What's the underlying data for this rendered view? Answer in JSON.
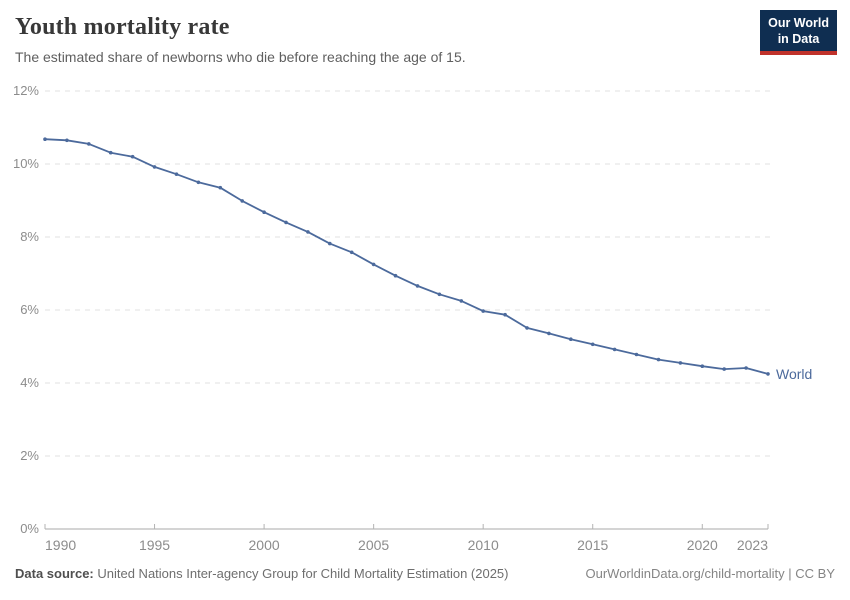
{
  "header": {
    "title": "Youth mortality rate",
    "subtitle": "The estimated share of newborns who die before reaching the age of 15."
  },
  "logo": {
    "line1": "Our World",
    "line2": "in Data",
    "bg_color": "#0f2e51",
    "accent_color": "#c0322b"
  },
  "footer": {
    "source_label": "Data source:",
    "source_text": " United Nations Inter-agency Group for Child Mortality Estimation (2025)",
    "attribution": "OurWorldinData.org/child-mortality | CC BY"
  },
  "chart_data": {
    "type": "line",
    "title": "Youth mortality rate",
    "subtitle": "The estimated share of newborns who die before reaching the age of 15.",
    "xlabel": "",
    "ylabel": "",
    "xlim": [
      1990,
      2023
    ],
    "ylim": [
      0,
      12
    ],
    "grid": "horizontal-dashed",
    "legend_position": "end-of-line",
    "line_color": "#4C6A9C",
    "xticks": [
      1990,
      1995,
      2000,
      2005,
      2010,
      2015,
      2020,
      2023
    ],
    "yticks": [
      0,
      2,
      4,
      6,
      8,
      10,
      12
    ],
    "ytick_labels": [
      "0%",
      "2%",
      "4%",
      "6%",
      "8%",
      "10%",
      "12%"
    ],
    "series": [
      {
        "name": "World",
        "color": "#4C6A9C",
        "x": [
          1990,
          1991,
          1992,
          1993,
          1994,
          1995,
          1996,
          1997,
          1998,
          1999,
          2000,
          2001,
          2002,
          2003,
          2004,
          2005,
          2006,
          2007,
          2008,
          2009,
          2010,
          2011,
          2012,
          2013,
          2014,
          2015,
          2016,
          2017,
          2018,
          2019,
          2020,
          2021,
          2022,
          2023
        ],
        "values": [
          10.68,
          10.65,
          10.55,
          10.31,
          10.2,
          9.92,
          9.72,
          9.5,
          9.35,
          8.99,
          8.68,
          8.4,
          8.14,
          7.82,
          7.58,
          7.25,
          6.94,
          6.66,
          6.43,
          6.25,
          5.97,
          5.87,
          5.51,
          5.36,
          5.2,
          5.06,
          4.92,
          4.78,
          4.64,
          4.55,
          4.46,
          4.38,
          4.41,
          4.25
        ]
      }
    ]
  }
}
